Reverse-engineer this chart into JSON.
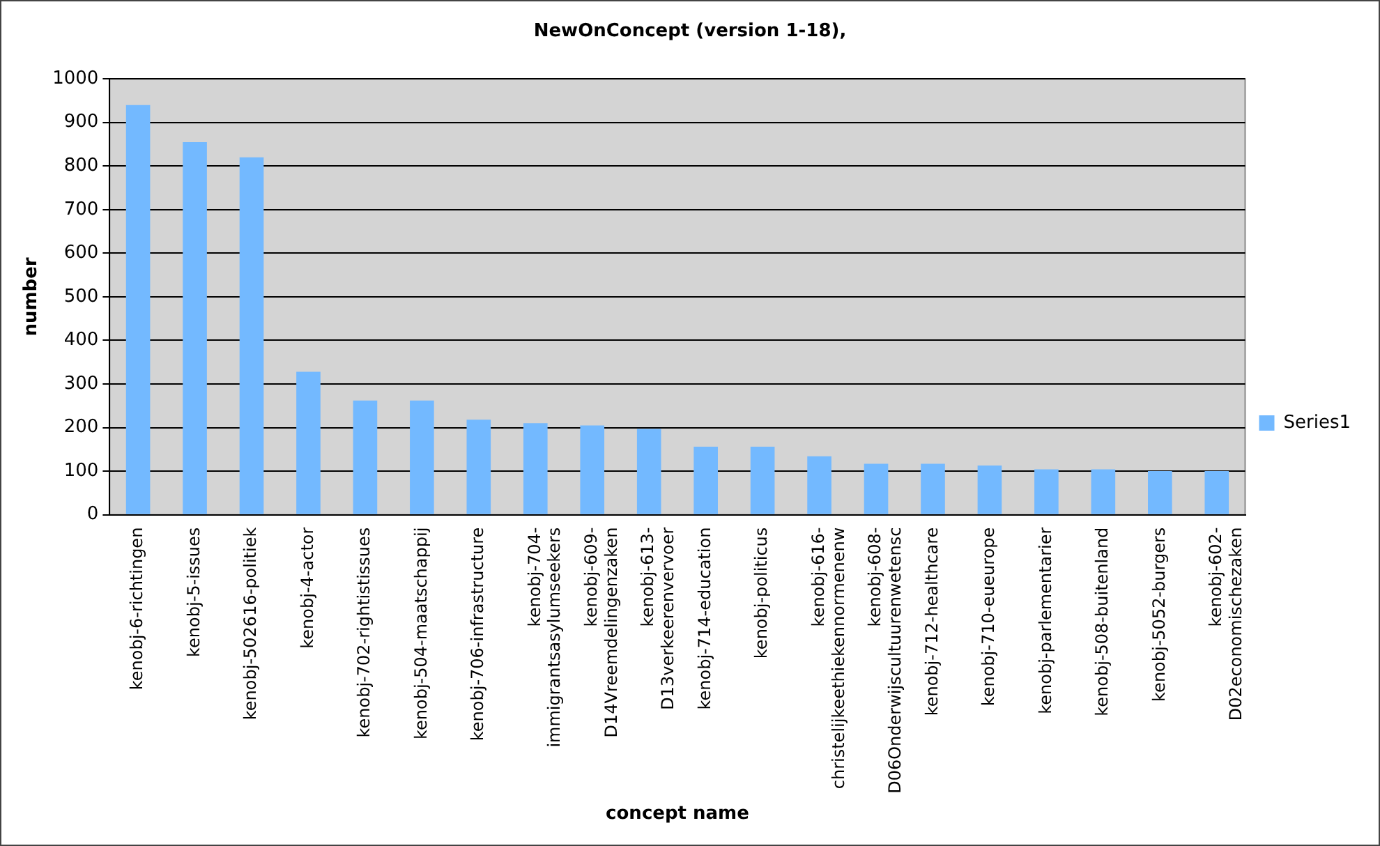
{
  "chart_data": {
    "type": "bar",
    "title": "NewOnConcept (version 1-18),",
    "xlabel": "concept name",
    "ylabel": "number",
    "categories": [
      "kenobj-6-richtingen",
      "kenobj-5-issues",
      "kenobj-502616-politiek",
      "kenobj-4-actor",
      "kenobj-702-rightistissues",
      "kenobj-504-maatschappij",
      "kenobj-706-infrastructure",
      "kenobj-704-\nimmigrantsasylumseekers",
      "kenobj-609-\nD14Vreemdelingenzaken",
      "kenobj-613-\nD13verkeerenvervoer",
      "kenobj-714-education",
      "kenobj-politicus",
      "kenobj-616-\nchristelijkeethiekennormenenw",
      "kenobj-608-\nD06Onderwijscultuurenwetensc",
      "kenobj-712-healthcare",
      "kenobj-710-eueurope",
      "kenobj-parlementarier",
      "kenobj-508-buitenland",
      "kenobj-5052-burgers",
      "kenobj-602-\nD02economischezaken"
    ],
    "series": [
      {
        "name": "Series1",
        "color": "#73b9ff",
        "values": [
          940,
          855,
          820,
          328,
          262,
          262,
          218,
          210,
          205,
          197,
          156,
          156,
          134,
          117,
          117,
          113,
          104,
          104,
          100,
          100
        ]
      }
    ],
    "ylim": [
      0,
      1000
    ],
    "yticks": [
      0,
      100,
      200,
      300,
      400,
      500,
      600,
      700,
      800,
      900,
      1000
    ],
    "grid": "y",
    "legend": "right"
  }
}
